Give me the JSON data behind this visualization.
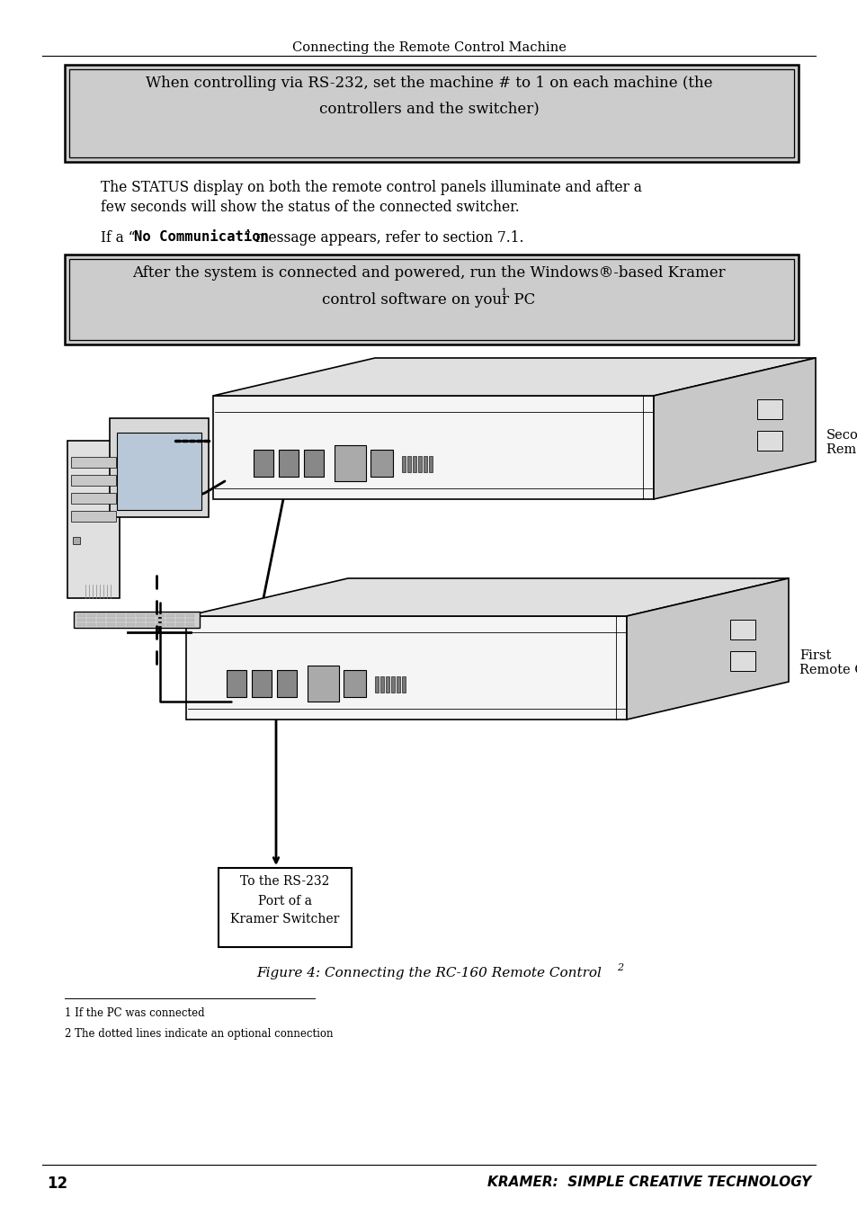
{
  "page_title": "Connecting the Remote Control Machine",
  "page_number": "12",
  "footer_text": "KRAMER:  SIMPLE CREATIVE TECHNOLOGY",
  "box1_line1": "When controlling via RS-232, set the machine # to 1 on each machine (the",
  "box1_line2": "controllers and the switcher)",
  "box1_bg": "#cccccc",
  "para1_line1": "The STATUS display on both the remote control panels illuminate and after a",
  "para1_line2": "few seconds will show the status of the connected switcher.",
  "para2_prefix": "If a “",
  "para2_mono": "No Communication",
  "para2_suffix": "” message appears, refer to section 7.1.",
  "box2_line1": "After the system is connected and powered, run the Windows®-based Kramer",
  "box2_line2": "control software on your PC",
  "box2_sup": "1",
  "box2_bg": "#cccccc",
  "label_second": "Second\nRemote Control",
  "label_first": "First\nRemote Control",
  "label_rs232_line1": "To the RS-232",
  "label_rs232_line2": "Port of a",
  "label_rs232_line3": "Kramer Switcher",
  "fig_caption_main": "Figure 4: Connecting the RC-160 Remote Control",
  "fig_caption_sup": "2",
  "footnote1": "1 If the PC was connected",
  "footnote2": "2 The dotted lines indicate an optional connection",
  "bg_color": "#ffffff",
  "text_color": "#000000"
}
